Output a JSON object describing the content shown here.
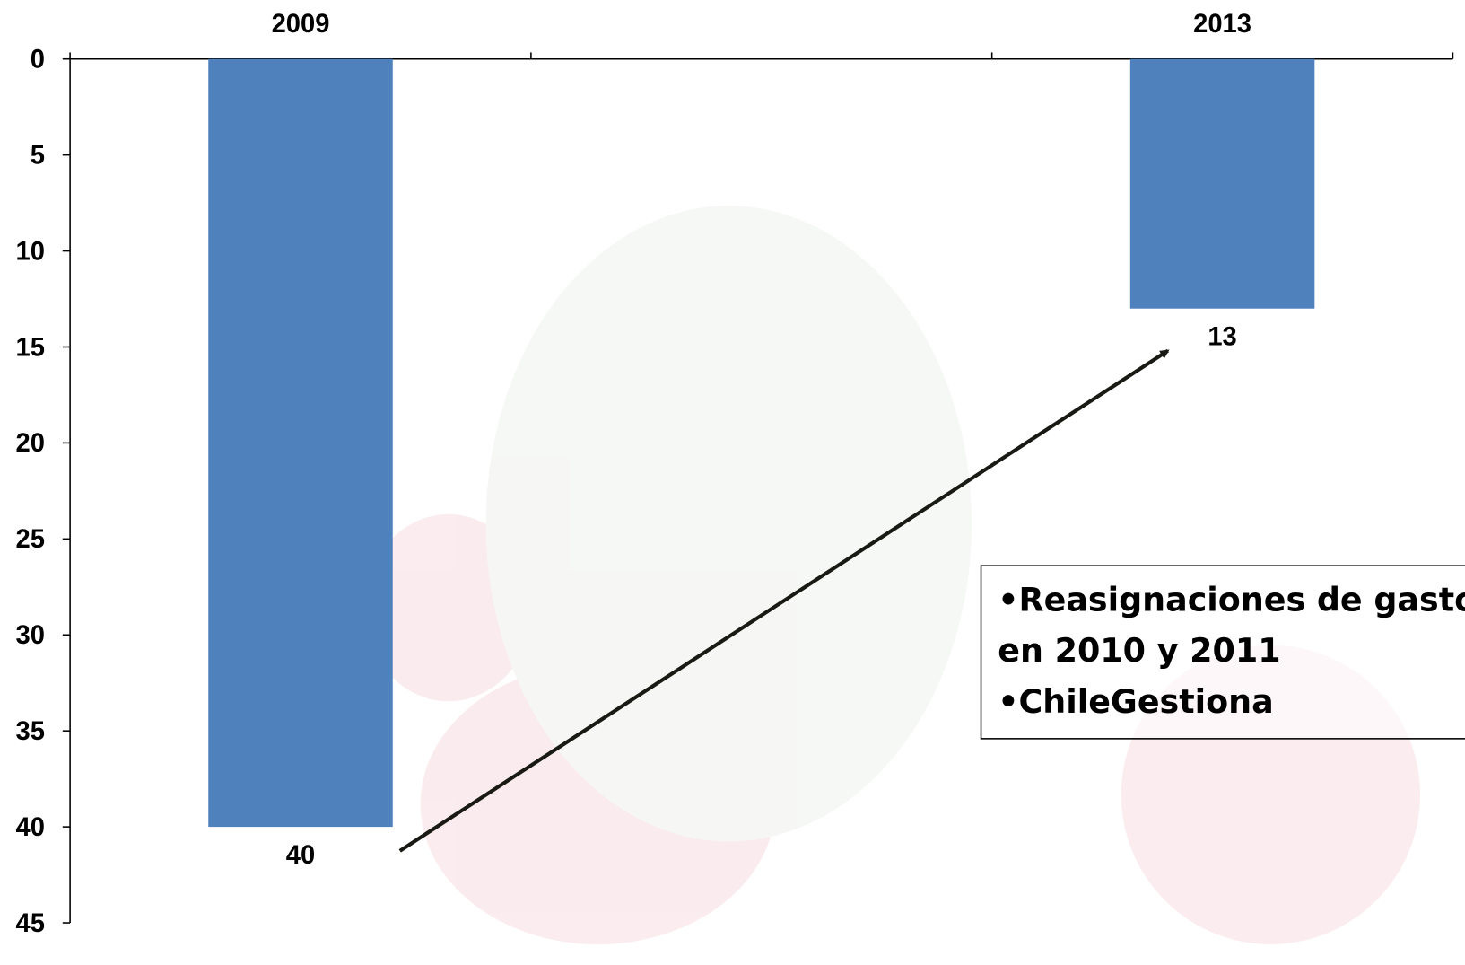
{
  "chart_data": {
    "type": "bar",
    "categories": [
      "2009",
      null,
      "2013"
    ],
    "values": [
      40,
      null,
      13
    ],
    "color": "#4f81bd",
    "ylim": [
      0,
      45
    ],
    "yticks": [
      0,
      5,
      10,
      15,
      20,
      25,
      30,
      35,
      40,
      45
    ],
    "y_inverted": true,
    "annotations": [
      "•Reasignaciones de gasto",
      "en 2010 y 2011",
      "•ChileGestiona"
    ]
  }
}
